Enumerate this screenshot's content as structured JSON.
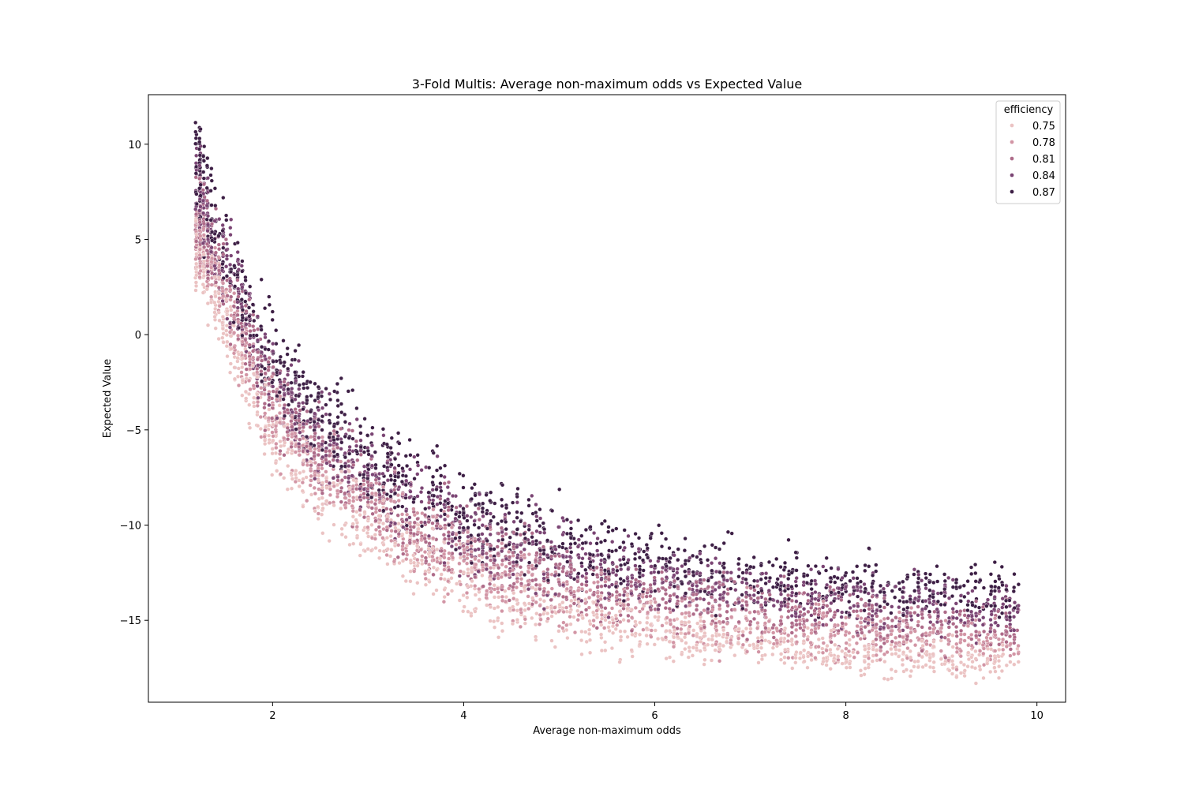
{
  "chart_data": {
    "type": "scatter",
    "title": "3-Fold Multis: Average non-maximum odds vs Expected Value",
    "xlabel": "Average non-maximum odds",
    "ylabel": "Expected Value",
    "xlim": [
      0.7,
      10.3
    ],
    "ylim": [
      -19.3,
      12.6
    ],
    "xticks": [
      2,
      4,
      6,
      8,
      10
    ],
    "yticks": [
      10,
      5,
      0,
      -5,
      -10,
      -15
    ],
    "grid": false,
    "legend": {
      "title": "efficiency",
      "placement": "top-right",
      "entries": [
        {
          "label": "0.75",
          "color": "#ebc3c3"
        },
        {
          "label": "0.78",
          "color": "#d295a5"
        },
        {
          "label": "0.81",
          "color": "#ae6b89"
        },
        {
          "label": "0.84",
          "color": "#7b4574"
        },
        {
          "label": "0.87",
          "color": "#3d1f45"
        }
      ]
    },
    "series": [
      {
        "name": "0.75",
        "color": "#ebc3c3",
        "x": [
          1.2,
          1.4,
          1.6,
          1.8,
          2.0,
          2.3,
          2.6,
          3.0,
          3.5,
          4.0,
          4.5,
          5.0,
          5.5,
          6.0,
          6.5,
          7.0,
          7.5,
          8.0,
          8.5,
          9.0,
          9.5,
          9.8
        ],
        "y_low": [
          2.8,
          0.5,
          -2.5,
          -4.8,
          -7.2,
          -8.8,
          -10.6,
          -11.8,
          -13.3,
          -14.6,
          -15.6,
          -16.2,
          -16.5,
          -16.8,
          -17.0,
          -17.2,
          -17.4,
          -17.6,
          -17.8,
          -17.9,
          -18.0,
          -18.0
        ],
        "y_high": [
          6.0,
          3.5,
          1.0,
          -1.5,
          -3.5,
          -5.5,
          -7.0,
          -8.5,
          -10.0,
          -11.5,
          -12.5,
          -13.3,
          -14.0,
          -14.5,
          -14.9,
          -15.2,
          -15.5,
          -15.8,
          -16.0,
          -16.2,
          -16.4,
          -16.5
        ]
      },
      {
        "name": "0.78",
        "color": "#d295a5",
        "x": [
          1.2,
          1.4,
          1.6,
          1.8,
          2.0,
          2.3,
          2.6,
          3.0,
          3.5,
          4.0,
          4.5,
          5.0,
          5.5,
          6.0,
          6.5,
          7.0,
          7.5,
          8.0,
          8.5,
          9.0,
          9.5,
          9.8
        ],
        "y_low": [
          3.8,
          1.5,
          -1.5,
          -3.8,
          -6.0,
          -7.8,
          -9.5,
          -10.8,
          -12.2,
          -13.6,
          -14.6,
          -15.3,
          -15.7,
          -16.0,
          -16.3,
          -16.5,
          -16.7,
          -16.9,
          -17.0,
          -17.1,
          -17.2,
          -17.2
        ],
        "y_high": [
          7.5,
          4.8,
          2.2,
          -0.3,
          -2.3,
          -4.3,
          -5.8,
          -7.3,
          -8.8,
          -10.2,
          -11.2,
          -12.0,
          -12.8,
          -13.3,
          -13.8,
          -14.1,
          -14.4,
          -14.7,
          -14.9,
          -15.1,
          -15.3,
          -15.4
        ]
      },
      {
        "name": "0.81",
        "color": "#ae6b89",
        "x": [
          1.2,
          1.4,
          1.6,
          1.8,
          2.0,
          2.3,
          2.6,
          3.0,
          3.5,
          4.0,
          4.5,
          5.0,
          5.5,
          6.0,
          6.5,
          7.0,
          7.5,
          8.0,
          8.5,
          9.0,
          9.5,
          9.8
        ],
        "y_low": [
          4.5,
          2.2,
          -0.8,
          -3.0,
          -5.2,
          -7.0,
          -8.6,
          -10.0,
          -11.4,
          -12.8,
          -13.8,
          -14.5,
          -14.9,
          -15.2,
          -15.5,
          -15.7,
          -15.9,
          -16.1,
          -16.2,
          -16.3,
          -16.4,
          -16.4
        ],
        "y_high": [
          8.8,
          5.8,
          3.3,
          0.9,
          -1.2,
          -3.2,
          -4.8,
          -6.3,
          -7.8,
          -9.2,
          -10.2,
          -11.0,
          -11.8,
          -12.3,
          -12.8,
          -13.1,
          -13.4,
          -13.7,
          -13.9,
          -14.1,
          -14.3,
          -14.4
        ]
      },
      {
        "name": "0.84",
        "color": "#7b4574",
        "x": [
          1.2,
          1.4,
          1.6,
          1.8,
          2.0,
          2.3,
          2.6,
          3.0,
          3.5,
          4.0,
          4.5,
          5.0,
          5.5,
          6.0,
          6.5,
          7.0,
          7.5,
          8.0,
          8.5,
          9.0,
          9.5,
          9.8
        ],
        "y_low": [
          5.5,
          3.0,
          0.0,
          -2.2,
          -4.4,
          -6.2,
          -7.8,
          -9.2,
          -10.6,
          -12.0,
          -13.0,
          -13.7,
          -14.1,
          -14.4,
          -14.7,
          -14.9,
          -15.1,
          -15.3,
          -15.4,
          -15.5,
          -15.6,
          -15.6
        ],
        "y_high": [
          10.2,
          6.8,
          4.5,
          2.0,
          -0.2,
          -2.2,
          -3.8,
          -5.3,
          -6.8,
          -8.2,
          -9.2,
          -10.0,
          -10.8,
          -11.3,
          -11.8,
          -12.1,
          -12.4,
          -12.7,
          -12.9,
          -13.1,
          -13.3,
          -13.4
        ]
      },
      {
        "name": "0.87",
        "color": "#3d1f45",
        "x": [
          1.2,
          1.4,
          1.6,
          1.8,
          2.0,
          2.3,
          2.6,
          3.0,
          3.5,
          4.0,
          4.5,
          5.0,
          5.5,
          6.0,
          6.5,
          7.0,
          7.5,
          8.0,
          8.5,
          9.0,
          9.5,
          9.8
        ],
        "y_low": [
          6.5,
          3.8,
          0.8,
          -1.4,
          -3.6,
          -5.4,
          -7.0,
          -8.4,
          -9.8,
          -11.2,
          -12.2,
          -12.9,
          -13.3,
          -13.6,
          -13.9,
          -14.1,
          -14.3,
          -14.5,
          -14.6,
          -14.7,
          -14.8,
          -14.8
        ],
        "y_high": [
          11.2,
          7.5,
          5.5,
          3.0,
          0.8,
          -1.2,
          -2.8,
          -4.3,
          -5.8,
          -7.2,
          -8.2,
          -9.0,
          -9.8,
          -10.3,
          -10.8,
          -11.1,
          -11.4,
          -11.7,
          -11.9,
          -12.1,
          -12.3,
          -12.4
        ]
      }
    ]
  }
}
